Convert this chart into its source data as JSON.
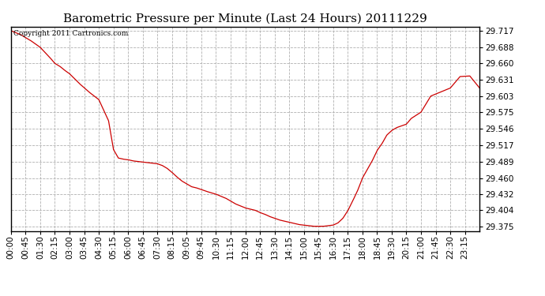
{
  "title": "Barometric Pressure per Minute (Last 24 Hours) 20111229",
  "copyright": "Copyright 2011 Cartronics.com",
  "line_color": "#cc0000",
  "background_color": "#ffffff",
  "grid_color": "#b0b0b0",
  "y_ticks": [
    29.375,
    29.404,
    29.432,
    29.46,
    29.489,
    29.517,
    29.546,
    29.575,
    29.603,
    29.631,
    29.66,
    29.688,
    29.717
  ],
  "ylim": [
    29.368,
    29.724
  ],
  "x_tick_labels": [
    "00:00",
    "00:45",
    "01:30",
    "02:15",
    "03:00",
    "03:45",
    "04:30",
    "05:15",
    "06:00",
    "06:45",
    "07:30",
    "08:15",
    "09:05",
    "09:45",
    "10:30",
    "11:15",
    "12:00",
    "12:45",
    "13:30",
    "14:15",
    "15:00",
    "15:45",
    "16:30",
    "17:15",
    "18:00",
    "18:45",
    "19:30",
    "20:15",
    "21:00",
    "21:45",
    "22:30",
    "23:15"
  ],
  "title_fontsize": 11,
  "tick_fontsize": 7.5,
  "copyright_fontsize": 6.5,
  "control_t": [
    0,
    30,
    60,
    90,
    120,
    135,
    150,
    165,
    180,
    210,
    240,
    270,
    300,
    315,
    330,
    345,
    360,
    375,
    390,
    405,
    420,
    435,
    450,
    465,
    480,
    495,
    510,
    525,
    540,
    555,
    570,
    585,
    600,
    630,
    660,
    690,
    720,
    750,
    765,
    780,
    795,
    810,
    825,
    840,
    855,
    870,
    885,
    900,
    915,
    930,
    945,
    960,
    975,
    990,
    1005,
    1020,
    1035,
    1050,
    1065,
    1080,
    1095,
    1110,
    1125,
    1140,
    1155,
    1170,
    1185,
    1200,
    1215,
    1230,
    1260,
    1290,
    1320,
    1350,
    1380,
    1410,
    1440
  ],
  "control_p": [
    29.717,
    29.71,
    29.7,
    29.688,
    29.67,
    29.66,
    29.655,
    29.648,
    29.642,
    29.625,
    29.61,
    29.597,
    29.56,
    29.51,
    29.495,
    29.493,
    29.492,
    29.49,
    29.489,
    29.488,
    29.487,
    29.486,
    29.485,
    29.482,
    29.477,
    29.47,
    29.462,
    29.455,
    29.45,
    29.445,
    29.443,
    29.44,
    29.437,
    29.432,
    29.425,
    29.415,
    29.408,
    29.404,
    29.4,
    29.397,
    29.393,
    29.39,
    29.387,
    29.385,
    29.383,
    29.381,
    29.379,
    29.378,
    29.377,
    29.376,
    29.376,
    29.376,
    29.377,
    29.378,
    29.382,
    29.39,
    29.403,
    29.42,
    29.438,
    29.46,
    29.475,
    29.49,
    29.508,
    29.52,
    29.535,
    29.543,
    29.548,
    29.551,
    29.554,
    29.564,
    29.575,
    29.603,
    29.61,
    29.617,
    29.637,
    29.638,
    29.617
  ]
}
